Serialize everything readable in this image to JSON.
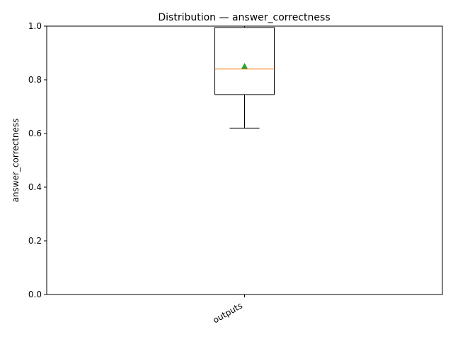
{
  "chart_data": {
    "type": "box",
    "title": "Distribution — answer_correctness",
    "xlabel": "",
    "ylabel": "answer_correctness",
    "categories": [
      "outputs"
    ],
    "ylim": [
      0,
      1.0
    ],
    "yticks": [
      {
        "value": 0.0,
        "label": "0.0"
      },
      {
        "value": 0.2,
        "label": "0.2"
      },
      {
        "value": 0.4,
        "label": "0.4"
      },
      {
        "value": 0.6,
        "label": "0.6"
      },
      {
        "value": 0.8,
        "label": "0.8"
      },
      {
        "value": 1.0,
        "label": "1.0"
      }
    ],
    "boxes": [
      {
        "category": "outputs",
        "whisker_low": 0.62,
        "q1": 0.745,
        "median": 0.84,
        "mean": 0.85,
        "q3": 0.995,
        "whisker_high": 1.0
      }
    ],
    "grid": false,
    "colors": {
      "box": "#000000",
      "median": "#ff7f0e",
      "mean": "#2ca02c"
    }
  }
}
